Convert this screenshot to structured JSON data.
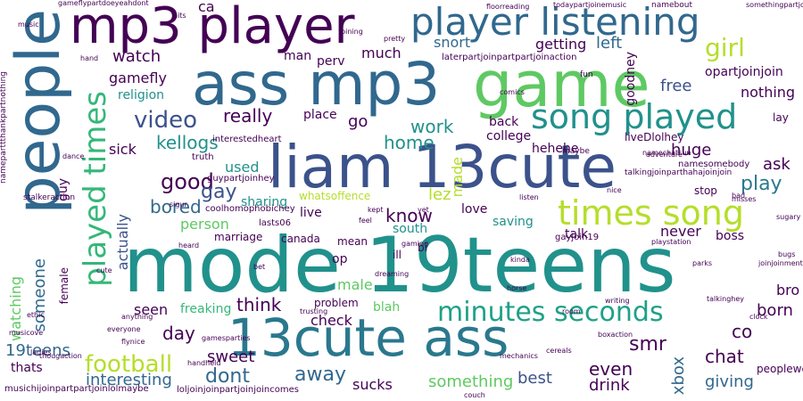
{
  "palette": {
    "dark_purple": "#440154",
    "indigo": "#3b528b",
    "blue": "#31688e",
    "teal": "#21918c",
    "green_teal": "#1fa187",
    "green": "#5ec962",
    "lime": "#b5de2b",
    "yellow": "#fde725"
  },
  "words": {
    "mode_19teens": "mode 19teens",
    "people": "people",
    "liam_13cute": "liam 13cute",
    "ass_mp3": "ass mp3",
    "game": "game",
    "mp3_player": "mp3 player",
    "13cute_ass": "13cute ass",
    "player_listening": "player listening",
    "played_times": "played times",
    "song_played": "song played",
    "times_song": "times song",
    "minutes_seconds": "minutes seconds",
    "video": "video",
    "girl": "girl",
    "football": "football",
    "good": "good",
    "play": "play",
    "watch": "watch",
    "kellogs": "kellogs",
    "really": "really",
    "home": "home",
    "work": "work",
    "gay": "gay",
    "bored": "bored",
    "know": "know",
    "someone": "someone",
    "watching": "watching",
    "interesting": "interesting",
    "think": "think",
    "seen": "seen",
    "day": "day",
    "sweet": "sweet",
    "dont": "dont",
    "away": "away",
    "check": "check",
    "even": "even",
    "drink": "drink",
    "best": "best",
    "something": "something",
    "sucks": "sucks",
    "xbox": "xbox",
    "chat": "chat",
    "smr": "smr",
    "giving": "giving",
    "born": "born",
    "bro": "bro",
    "co": "co",
    "ask": "ask",
    "huge": "huge",
    "free": "free",
    "nothing": "nothing",
    "goodney": "goodney",
    "opartjoinjoin": "opartjoinjoin",
    "snort": "snort",
    "getting": "getting",
    "left": "left",
    "much": "much",
    "gamefly": "gamefly",
    "religion": "religion",
    "sick": "sick",
    "actually": "actually",
    "person": "person",
    "used": "used",
    "sharing": "sharing",
    "live": "live",
    "lez": "lez",
    "love": "love",
    "saving": "saving",
    "south": "south",
    "talk": "talk",
    "never": "never",
    "boss": "boss",
    "op": "op",
    "male": "male",
    "blah": "blah",
    "problem": "problem",
    "freaking": "freaking",
    "marriage": "marriage",
    "19teens_small": "19teens",
    "thats": "thats",
    "ca": "ca",
    "man": "man",
    "perv": "perv",
    "go": "go",
    "back": "back",
    "college": "college",
    "hehehe": "hehehe",
    "place": "place",
    "canada": "canada",
    "mean": "mean",
    "stop": "stop",
    "lay": "lay",
    "guy": "guy",
    "female": "female",
    "liveDlolhey": "liveDlolhey",
    "namesomebody": "namesomebody",
    "made": "made",
    "peoplewell": "peoplewell",
    "gayjoin19": "gayjoin19",
    "musichijoinpartpartjoinlolmaybe": "musichijoinpartpartjoinlolmaybe",
    "lolbigjoin": "loljoinjoinpartjoinjoincomes",
    "gameflypartdoeyeahdont": "gameflypartdoeyeahdont",
    "nameparttthankpartnothing": "nameparttthankpartnothing",
    "laterpartjoinpartjoinaction": "laterpartjoinpartpartjoinaction",
    "namebout": "namebout",
    "todaypartjoinmusic": "todaypartjoinemusic",
    "floorreading": "floorreading",
    "something_partial": "somethingpartjoinpart",
    "whatsoffence": "whatsoffence",
    "interestedheart": "interestedheart",
    "guypartjoinhey": "guypartjoinhey",
    "coolhomophobichey": "coolhomophobichey",
    "truth": "truth",
    "lasts06": "lasts06",
    "talkingjoinparthahajoinjoin": "talkingjoinparthahajoinjoin",
    "namechatsun": "namechatsun",
    "fun": "fun",
    "comics": "comics",
    "dreaming": "dreaming",
    "music": "music",
    "pretty": "pretty",
    "bad": "bad",
    "nice": "nice",
    "bugs": "bugs",
    "hits": "hits",
    "cute": "cute",
    "room": "room",
    "sigur": "sigur",
    "hand": "hand",
    "heard": "heard",
    "misses": "misses",
    "kinda": "kinda",
    "listen": "listen",
    "maybe": "maybe",
    "bi": "bi",
    "ill": "ill",
    "dance": "dance",
    "gaming": "gaming",
    "writing": "writing",
    "horse": "horse",
    "couch": "couch",
    "kept": "kept",
    "feel": "feel",
    "yet": "yet",
    "gamesparties": "gamesparties",
    "trusting": "trusting",
    "stalkeraction": "stalkeraction",
    "ladies": "ladies",
    "ethic": "ethic",
    "musicove": "musicove",
    "anything": "anything",
    "flynice": "flynice",
    "everyone": "everyone",
    "boxaction": "boxaction",
    "handheld": "handheld",
    "joinjoinment": "joinjoinment",
    "cereals": "cereals",
    "parks": "parks",
    "clock": "clock",
    "playstation": "playstation",
    "talkinghey": "talkinghey",
    "thougaction": "thougaction",
    "mechanics": "mechanics",
    "adventure": "adventure",
    "sugary": "sugary",
    "joining": "joining",
    "bet": "bet"
  }
}
